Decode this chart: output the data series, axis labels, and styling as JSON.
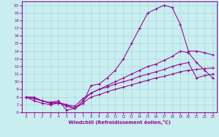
{
  "xlabel": "Windchill (Refroidissement éolien,°C)",
  "bg_color": "#c8eef0",
  "grid_color": "#aad4d8",
  "line_color": "#990099",
  "xlim": [
    -0.5,
    23.5
  ],
  "ylim": [
    6,
    20.5
  ],
  "xticks": [
    0,
    1,
    2,
    3,
    4,
    5,
    6,
    7,
    8,
    9,
    10,
    11,
    12,
    13,
    14,
    15,
    16,
    17,
    18,
    19,
    20,
    21,
    22,
    23
  ],
  "yticks": [
    6,
    7,
    8,
    9,
    10,
    11,
    12,
    13,
    14,
    15,
    16,
    17,
    18,
    19,
    20
  ],
  "curves": [
    {
      "x": [
        0,
        1,
        2,
        3,
        4,
        5,
        6,
        7,
        8,
        9,
        10,
        11,
        12,
        13,
        14,
        15,
        16,
        17,
        18,
        19,
        20,
        21,
        22,
        23
      ],
      "y": [
        8.0,
        8.0,
        7.5,
        7.3,
        7.5,
        6.3,
        6.5,
        7.2,
        9.5,
        9.7,
        10.5,
        11.5,
        13.0,
        15.0,
        17.0,
        19.0,
        19.5,
        20.0,
        19.7,
        17.5,
        14.0,
        14.0,
        13.8,
        13.5
      ]
    },
    {
      "x": [
        0,
        1,
        2,
        3,
        4,
        5,
        6,
        7,
        8,
        9,
        10,
        11,
        12,
        13,
        14,
        15,
        16,
        17,
        18,
        19,
        20,
        21,
        22,
        23
      ],
      "y": [
        8.0,
        7.5,
        7.2,
        7.0,
        7.2,
        7.0,
        6.5,
        7.5,
        8.5,
        9.0,
        9.5,
        10.0,
        10.5,
        11.0,
        11.5,
        12.0,
        12.3,
        12.8,
        13.3,
        14.0,
        13.8,
        12.5,
        11.5,
        10.5
      ]
    },
    {
      "x": [
        0,
        1,
        2,
        3,
        4,
        5,
        6,
        7,
        8,
        9,
        10,
        11,
        12,
        13,
        14,
        15,
        16,
        17,
        18,
        19,
        20,
        21,
        22,
        23
      ],
      "y": [
        8.0,
        7.8,
        7.5,
        7.2,
        7.3,
        7.0,
        6.8,
        7.8,
        8.5,
        9.0,
        9.3,
        9.7,
        10.0,
        10.3,
        10.7,
        11.0,
        11.3,
        11.6,
        12.0,
        12.3,
        12.5,
        10.5,
        10.8,
        11.0
      ]
    },
    {
      "x": [
        0,
        1,
        2,
        3,
        4,
        5,
        6,
        7,
        8,
        9,
        10,
        11,
        12,
        13,
        14,
        15,
        16,
        17,
        18,
        19,
        20,
        21,
        22,
        23
      ],
      "y": [
        8.0,
        7.8,
        7.5,
        7.2,
        7.3,
        6.8,
        6.5,
        7.2,
        8.0,
        8.3,
        8.7,
        9.0,
        9.3,
        9.6,
        9.9,
        10.2,
        10.5,
        10.7,
        11.0,
        11.3,
        11.5,
        11.6,
        11.7,
        11.8
      ]
    }
  ]
}
